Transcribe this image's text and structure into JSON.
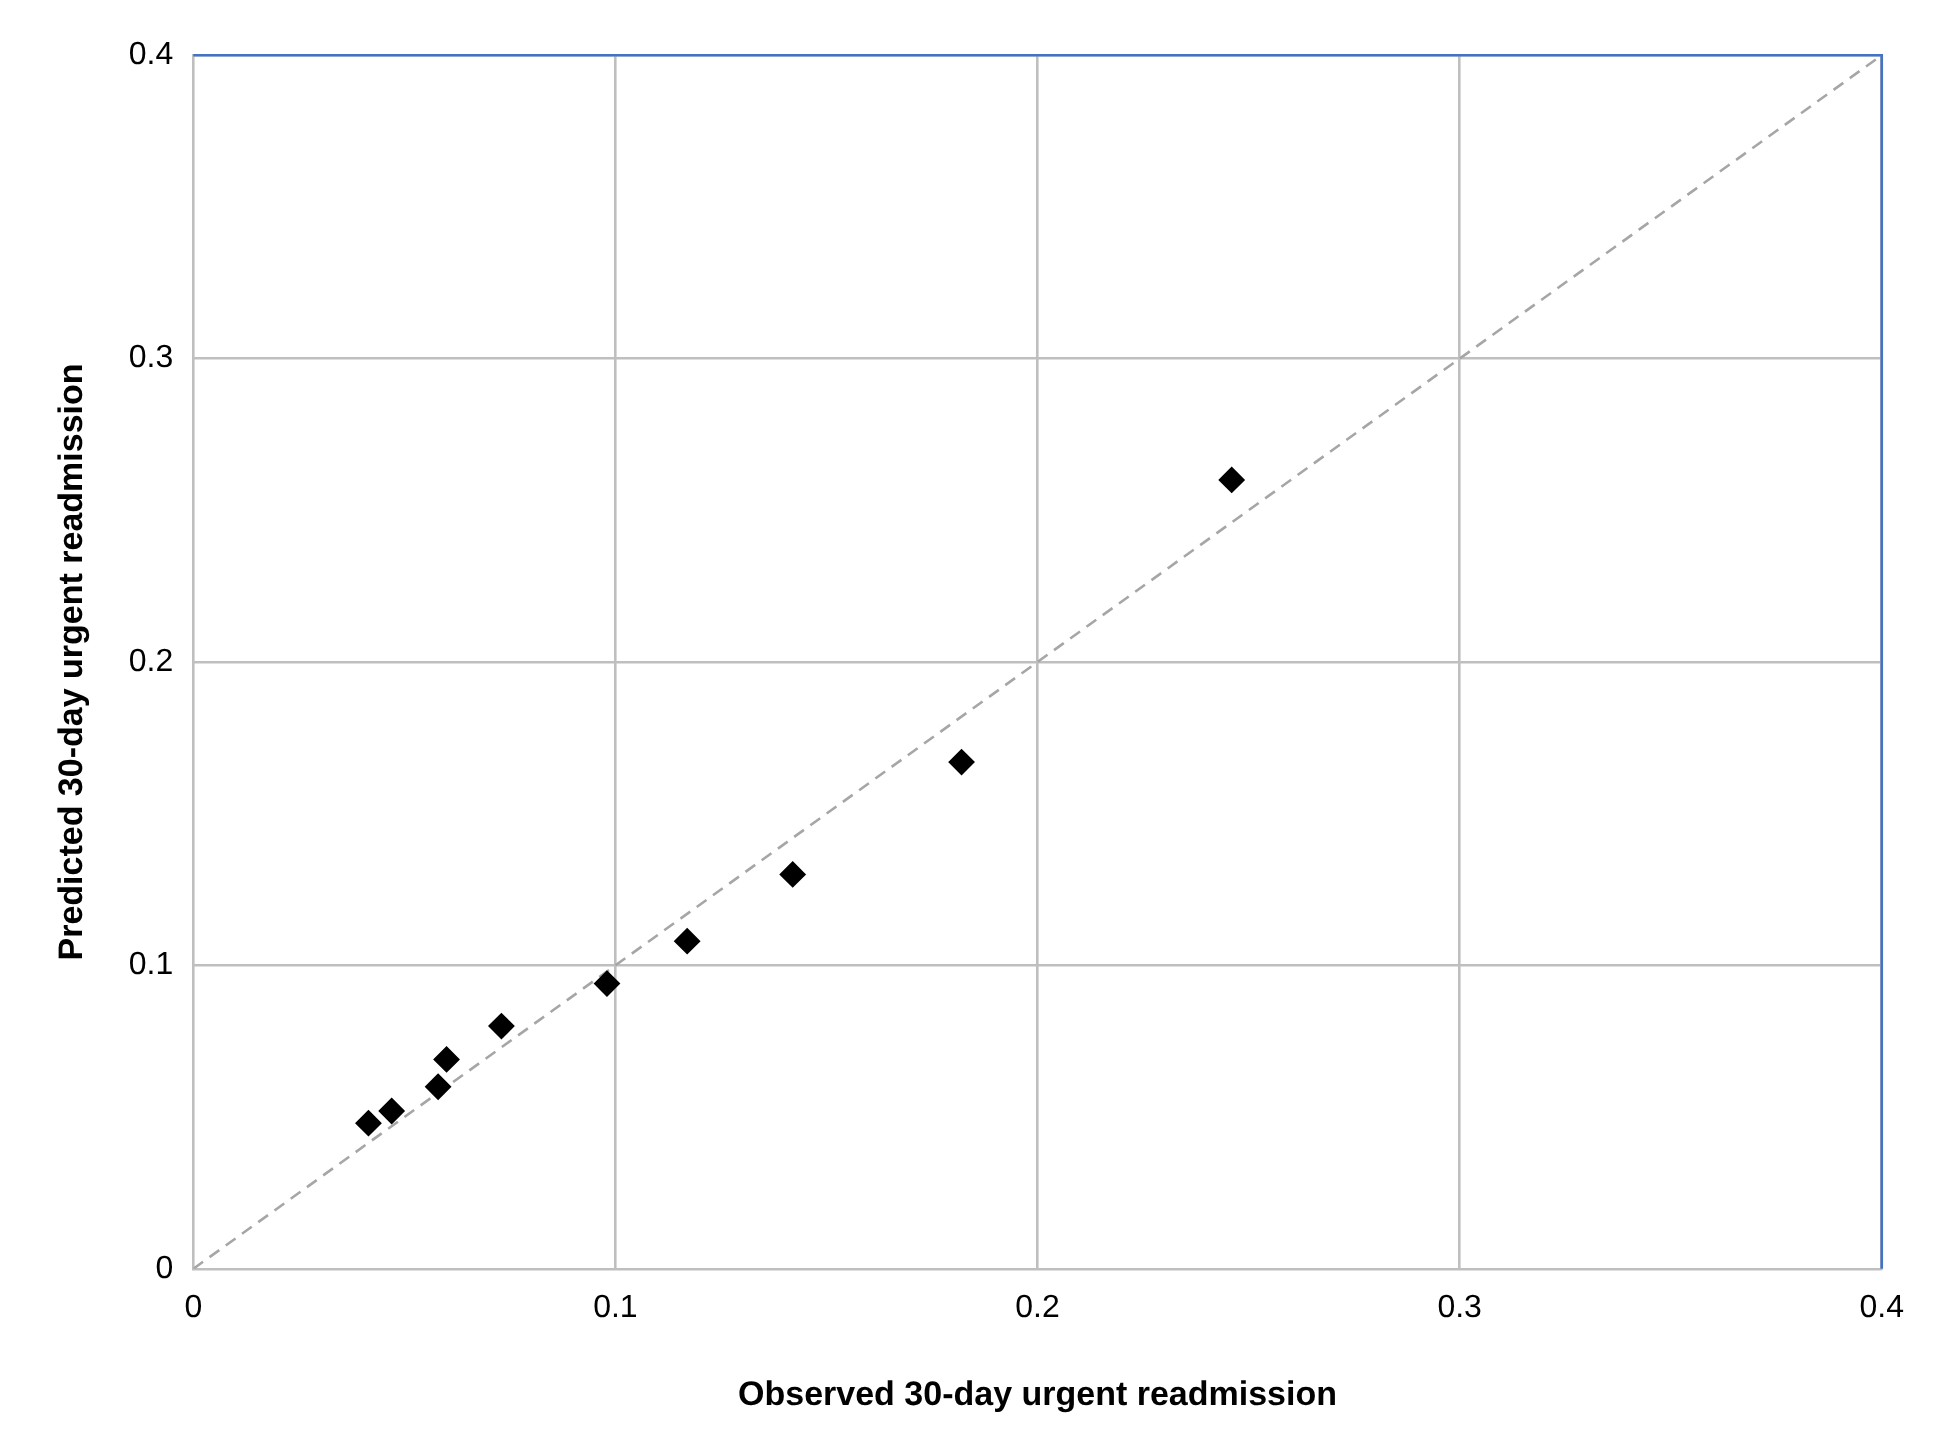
{
  "chart_data": {
    "type": "scatter",
    "xlabel": "Observed 30-day urgent readmission",
    "ylabel": "Predicted 30-day urgent readmission",
    "x": [
      0.0415,
      0.047,
      0.058,
      0.06,
      0.073,
      0.098,
      0.117,
      0.142,
      0.182,
      0.246
    ],
    "series": [
      {
        "type": "scatter",
        "color": "#000000",
        "marker": "diamond",
        "values": [
          0.048,
          0.052,
          0.06,
          0.069,
          0.08,
          0.094,
          0.108,
          0.13,
          0.167,
          0.26
        ]
      },
      {
        "type": "line",
        "color": "#a6a6a6",
        "line_style": "dashed",
        "marker": "none",
        "x": [
          0,
          0.4
        ],
        "values": [
          0,
          0.4
        ]
      }
    ],
    "xlim": [
      0,
      0.4
    ],
    "ylim": [
      0,
      0.4
    ],
    "xticks": [
      0,
      0.1,
      0.2,
      0.3,
      0.4
    ],
    "yticks": [
      0,
      0.1,
      0.2,
      0.3,
      0.4
    ],
    "grid": true,
    "legend": false
  }
}
